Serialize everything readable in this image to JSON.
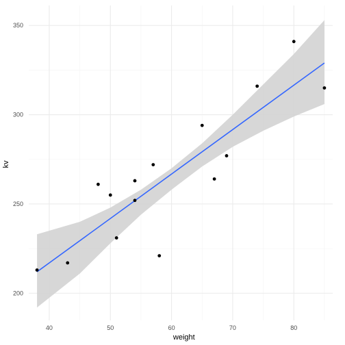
{
  "chart_data": {
    "type": "scatter",
    "title": "",
    "xlabel": "weight",
    "ylabel": "kv",
    "xlim": [
      36.65,
      86.35
    ],
    "ylim": [
      184.8,
      361.2
    ],
    "x_ticks": [
      40,
      50,
      60,
      70,
      80
    ],
    "y_ticks": [
      200,
      250,
      300,
      350
    ],
    "x_minor_ticks": [
      45,
      55,
      65,
      75,
      85
    ],
    "y_minor_ticks": [
      225,
      275,
      325
    ],
    "grid": true,
    "legend": "none",
    "points": [
      {
        "x": 38,
        "y": 213
      },
      {
        "x": 43,
        "y": 217
      },
      {
        "x": 48,
        "y": 261
      },
      {
        "x": 50,
        "y": 255
      },
      {
        "x": 51,
        "y": 231
      },
      {
        "x": 54,
        "y": 263
      },
      {
        "x": 54,
        "y": 252
      },
      {
        "x": 57,
        "y": 272
      },
      {
        "x": 58,
        "y": 221
      },
      {
        "x": 65,
        "y": 294
      },
      {
        "x": 67,
        "y": 264
      },
      {
        "x": 69,
        "y": 277
      },
      {
        "x": 74,
        "y": 316
      },
      {
        "x": 80,
        "y": 341
      },
      {
        "x": 85,
        "y": 315
      }
    ],
    "fit": {
      "method": "lm",
      "start": {
        "x": 38,
        "y": 212
      },
      "end": {
        "x": 85,
        "y": 329
      },
      "ribbon_upper": [
        {
          "x": 38,
          "y": 233
        },
        {
          "x": 45,
          "y": 240
        },
        {
          "x": 50,
          "y": 248
        },
        {
          "x": 55,
          "y": 258
        },
        {
          "x": 60,
          "y": 270
        },
        {
          "x": 65,
          "y": 284
        },
        {
          "x": 70,
          "y": 300
        },
        {
          "x": 75,
          "y": 317
        },
        {
          "x": 80,
          "y": 334
        },
        {
          "x": 85,
          "y": 353
        }
      ],
      "ribbon_lower": [
        {
          "x": 38,
          "y": 192
        },
        {
          "x": 45,
          "y": 211
        },
        {
          "x": 50,
          "y": 228
        },
        {
          "x": 55,
          "y": 244
        },
        {
          "x": 60,
          "y": 258
        },
        {
          "x": 65,
          "y": 271
        },
        {
          "x": 70,
          "y": 282
        },
        {
          "x": 75,
          "y": 291
        },
        {
          "x": 80,
          "y": 299
        },
        {
          "x": 85,
          "y": 306
        }
      ]
    },
    "colors": {
      "points": "#000000",
      "fit_line": "#3366FF",
      "ribbon": "#d3d3d3",
      "grid_major": "#ebebeb",
      "grid_minor": "#f4f4f4",
      "tick_text": "#4d4d4d"
    }
  }
}
